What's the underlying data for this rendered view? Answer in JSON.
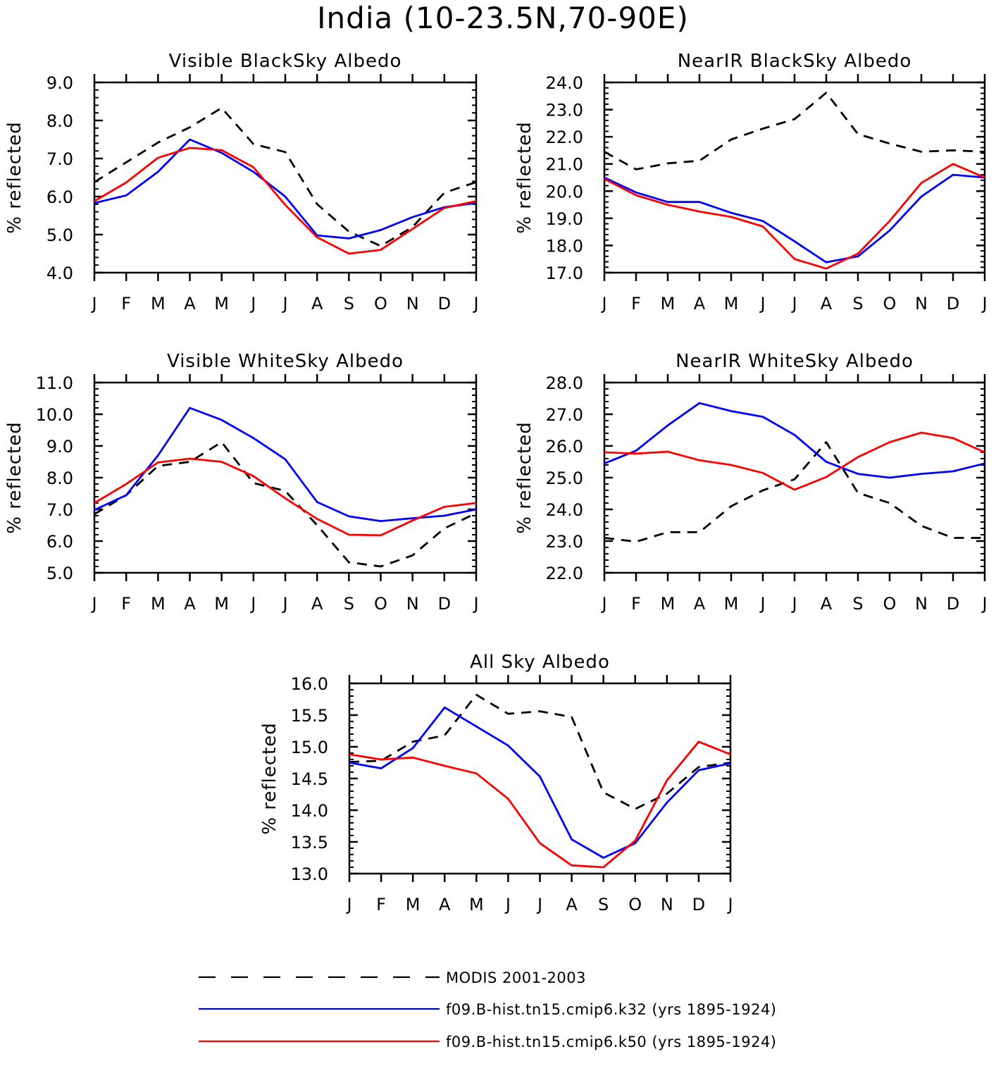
{
  "title": "India (10-23.5N,70-90E)",
  "colors": {
    "modis": "#000000",
    "k32": "#0000ff",
    "k50": "#ff0000"
  },
  "legend": [
    {
      "label": "MODIS 2001-2003",
      "series": "modis",
      "dash": true
    },
    {
      "label": "f09.B-hist.tn15.cmip6.k32 (yrs 1895-1924)",
      "series": "k32",
      "dash": false
    },
    {
      "label": "f09.B-hist.tn15.cmip6.k50 (yrs 1895-1924)",
      "series": "k50",
      "dash": false
    }
  ],
  "chart_data": [
    {
      "type": "line",
      "title": "Visible BlackSky Albedo",
      "ylabel": "% reflected",
      "xlabel": "",
      "categories": [
        "J",
        "F",
        "M",
        "A",
        "M",
        "J",
        "J",
        "A",
        "S",
        "O",
        "N",
        "D",
        "J"
      ],
      "ylim": [
        4.0,
        9.0
      ],
      "yticks": [
        "4.0",
        "5.0",
        "6.0",
        "7.0",
        "8.0",
        "9.0"
      ],
      "series": [
        {
          "name": "MODIS 2001-2003",
          "key": "modis",
          "values": [
            6.38,
            6.9,
            7.42,
            7.82,
            8.33,
            7.38,
            7.17,
            5.8,
            5.08,
            4.7,
            5.2,
            6.1,
            6.38
          ]
        },
        {
          "name": "f09.B-hist.tn15.cmip6.k32 (yrs 1895-1924)",
          "key": "k32",
          "values": [
            5.83,
            6.03,
            6.65,
            7.5,
            7.15,
            6.65,
            6.0,
            4.98,
            4.9,
            5.12,
            5.46,
            5.72,
            5.83
          ]
        },
        {
          "name": "f09.B-hist.tn15.cmip6.k50 (yrs 1895-1924)",
          "key": "k50",
          "values": [
            5.88,
            6.37,
            7.02,
            7.28,
            7.22,
            6.77,
            5.78,
            4.93,
            4.5,
            4.6,
            5.15,
            5.7,
            5.88
          ]
        }
      ]
    },
    {
      "type": "line",
      "title": "NearIR BlackSky Albedo",
      "ylabel": "% reflected",
      "xlabel": "",
      "categories": [
        "J",
        "F",
        "M",
        "A",
        "M",
        "J",
        "J",
        "A",
        "S",
        "O",
        "N",
        "D",
        "J"
      ],
      "ylim": [
        17.0,
        24.0
      ],
      "yticks": [
        "17.0",
        "18.0",
        "19.0",
        "20.0",
        "21.0",
        "22.0",
        "23.0",
        "24.0"
      ],
      "series": [
        {
          "name": "MODIS 2001-2003",
          "key": "modis",
          "values": [
            21.45,
            20.8,
            21.02,
            21.12,
            21.9,
            22.3,
            22.65,
            23.62,
            22.1,
            21.75,
            21.45,
            21.5,
            21.45
          ]
        },
        {
          "name": "f09.B-hist.tn15.cmip6.k32 (yrs 1895-1924)",
          "key": "k32",
          "values": [
            20.5,
            19.95,
            19.6,
            19.6,
            19.2,
            18.9,
            18.15,
            17.38,
            17.6,
            18.55,
            19.8,
            20.6,
            20.5
          ]
        },
        {
          "name": "f09.B-hist.tn15.cmip6.k50 (yrs 1895-1924)",
          "key": "k50",
          "values": [
            20.45,
            19.85,
            19.5,
            19.25,
            19.05,
            18.7,
            17.5,
            17.15,
            17.7,
            18.9,
            20.3,
            21.0,
            20.5
          ]
        }
      ]
    },
    {
      "type": "line",
      "title": "Visible WhiteSky Albedo",
      "ylabel": "% reflected",
      "xlabel": "",
      "categories": [
        "J",
        "F",
        "M",
        "A",
        "M",
        "J",
        "J",
        "A",
        "S",
        "O",
        "N",
        "D",
        "J"
      ],
      "ylim": [
        5.0,
        11.0
      ],
      "yticks": [
        "5.0",
        "6.0",
        "7.0",
        "8.0",
        "9.0",
        "10.0",
        "11.0"
      ],
      "series": [
        {
          "name": "MODIS 2001-2003",
          "key": "modis",
          "values": [
            6.85,
            7.45,
            8.37,
            8.5,
            9.12,
            7.83,
            7.58,
            6.5,
            5.33,
            5.2,
            5.55,
            6.4,
            6.88
          ]
        },
        {
          "name": "f09.B-hist.tn15.cmip6.k32 (yrs 1895-1924)",
          "key": "k32",
          "values": [
            6.98,
            7.45,
            8.7,
            10.2,
            9.82,
            9.25,
            8.58,
            7.23,
            6.78,
            6.63,
            6.72,
            6.8,
            7.0
          ]
        },
        {
          "name": "f09.B-hist.tn15.cmip6.k50 (yrs 1895-1924)",
          "key": "k50",
          "values": [
            7.2,
            7.8,
            8.48,
            8.6,
            8.5,
            8.05,
            7.35,
            6.7,
            6.2,
            6.18,
            6.65,
            7.08,
            7.2
          ]
        }
      ]
    },
    {
      "type": "line",
      "title": "NearIR WhiteSky Albedo",
      "ylabel": "% reflected",
      "xlabel": "",
      "categories": [
        "J",
        "F",
        "M",
        "A",
        "M",
        "J",
        "J",
        "A",
        "S",
        "O",
        "N",
        "D",
        "J"
      ],
      "ylim": [
        22.0,
        28.0
      ],
      "yticks": [
        "22.0",
        "23.0",
        "24.0",
        "25.0",
        "26.0",
        "27.0",
        "28.0"
      ],
      "series": [
        {
          "name": "MODIS 2001-2003",
          "key": "modis",
          "values": [
            23.1,
            22.98,
            23.28,
            23.28,
            24.1,
            24.6,
            24.95,
            26.12,
            24.52,
            24.2,
            23.48,
            23.1,
            23.1
          ]
        },
        {
          "name": "f09.B-hist.tn15.cmip6.k32 (yrs 1895-1924)",
          "key": "k32",
          "values": [
            25.45,
            25.85,
            26.65,
            27.35,
            27.1,
            26.92,
            26.35,
            25.5,
            25.12,
            25.0,
            25.12,
            25.2,
            25.45
          ]
        },
        {
          "name": "f09.B-hist.tn15.cmip6.k50 (yrs 1895-1924)",
          "key": "k50",
          "values": [
            25.8,
            25.76,
            25.82,
            25.55,
            25.4,
            25.15,
            24.62,
            25.02,
            25.65,
            26.12,
            26.42,
            26.25,
            25.8
          ]
        }
      ]
    },
    {
      "type": "line",
      "title": "All Sky Albedo",
      "ylabel": "% reflected",
      "xlabel": "",
      "categories": [
        "J",
        "F",
        "M",
        "A",
        "M",
        "J",
        "J",
        "A",
        "S",
        "O",
        "N",
        "D",
        "J"
      ],
      "ylim": [
        13.0,
        16.0
      ],
      "yticks": [
        "13.0",
        "13.5",
        "14.0",
        "14.5",
        "15.0",
        "15.5",
        "16.0"
      ],
      "series": [
        {
          "name": "MODIS 2001-2003",
          "key": "modis",
          "values": [
            14.76,
            14.78,
            15.08,
            15.18,
            15.82,
            15.52,
            15.56,
            15.47,
            14.28,
            14.02,
            14.26,
            14.68,
            14.75
          ]
        },
        {
          "name": "f09.B-hist.tn15.cmip6.k32 (yrs 1895-1924)",
          "key": "k32",
          "values": [
            14.75,
            14.66,
            14.98,
            15.62,
            15.32,
            15.02,
            14.53,
            13.54,
            13.25,
            13.48,
            14.12,
            14.63,
            14.74
          ]
        },
        {
          "name": "f09.B-hist.tn15.cmip6.k50 (yrs 1895-1924)",
          "key": "k50",
          "values": [
            14.88,
            14.8,
            14.83,
            14.7,
            14.58,
            14.18,
            13.48,
            13.13,
            13.1,
            13.52,
            14.47,
            15.08,
            14.88
          ]
        }
      ]
    }
  ]
}
